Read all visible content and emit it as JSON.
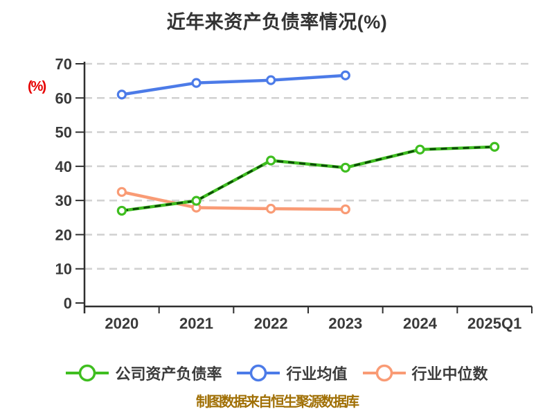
{
  "chart_data": {
    "type": "line",
    "title": "近年来资产负债率情况(%)",
    "ylabel": "(%)",
    "xlabel": "",
    "categories": [
      "2020",
      "2021",
      "2022",
      "2023",
      "2024",
      "2025Q1"
    ],
    "series": [
      {
        "name": "公司资产负债率",
        "color": "#3FBE20",
        "overlay_dash_color": "#0B4A06",
        "marker": "circle",
        "values": [
          27.0,
          29.9,
          41.7,
          39.6,
          44.9,
          45.7
        ]
      },
      {
        "name": "行业均值",
        "color": "#4C7BE8",
        "marker": "circle",
        "values": [
          61.0,
          64.4,
          65.2,
          66.6,
          null,
          null
        ]
      },
      {
        "name": "行业中位数",
        "color": "#F99B75",
        "marker": "circle",
        "values": [
          32.5,
          27.9,
          27.6,
          27.4,
          null,
          null
        ]
      }
    ],
    "ylim": [
      0,
      70
    ],
    "ytick_step": 10,
    "yticks": [
      0,
      10,
      20,
      30,
      40,
      50,
      60,
      70
    ],
    "grid": "horizontal-dashed",
    "legend_position": "bottom"
  },
  "caption": {
    "text": "制图数据来自恒生聚源数据库",
    "color": "#A06F04"
  },
  "colors": {
    "title": "#333333",
    "axis": "#2F2F2F",
    "tick_label": "#3A3A3A",
    "grid": "#D2D2D2",
    "ylabel": "#E60000",
    "legend_text": "#3C3C3C",
    "marker_fill": "#FFFFFF",
    "background": "#FFFFFF"
  }
}
